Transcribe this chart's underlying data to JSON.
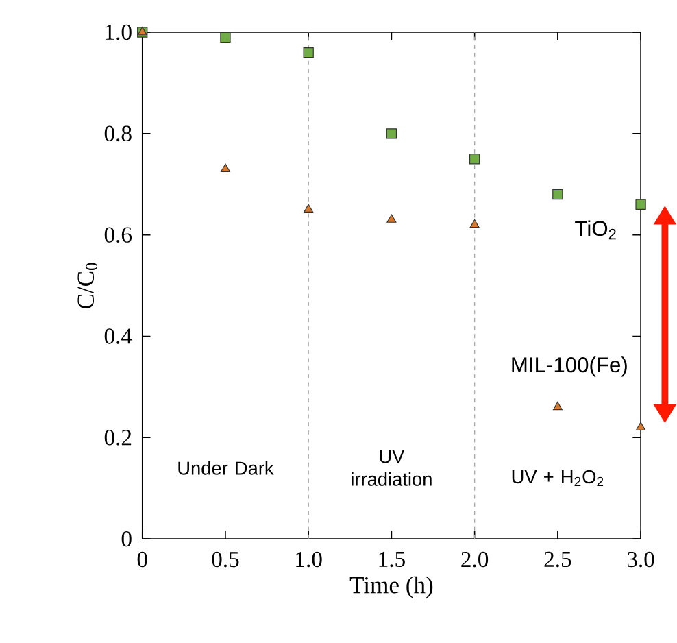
{
  "chart_data": {
    "type": "scatter",
    "xlabel": "Time (h)",
    "ylabel": "C/C$_{0}$",
    "xlim": [
      0,
      3
    ],
    "ylim": [
      0,
      1
    ],
    "xticks": [
      0,
      {
        "value": 0.5,
        "label": "0.5"
      },
      {
        "value": 1,
        "label": "1.0"
      },
      {
        "value": 1.5,
        "label": "1.5"
      },
      {
        "value": 2,
        "label": "2.0"
      },
      {
        "value": 2.5,
        "label": "2.5"
      },
      {
        "value": 3,
        "label": "3.0"
      }
    ],
    "yticks": [
      0,
      0.2,
      0.4,
      0.6,
      0.8,
      {
        "value": 1,
        "label": "1.0"
      }
    ],
    "x": [
      0,
      0.5,
      1,
      1.5,
      2,
      2.5,
      3
    ],
    "series": [
      {
        "name": "TiO$_{2}$",
        "color": "#70ad47",
        "marker": "square",
        "values": [
          1.0,
          0.99,
          0.96,
          0.8,
          0.75,
          0.68,
          0.66
        ]
      },
      {
        "name": "MIL-100(Fe)",
        "color": "#d9792b",
        "marker": "triangle",
        "values": [
          1.0,
          0.73,
          0.65,
          0.63,
          0.62,
          0.26,
          0.22
        ]
      }
    ],
    "ref_lines": [
      {
        "axis": "x",
        "value": 1,
        "color": "#aaaaaa",
        "line_style": "dashed"
      },
      {
        "axis": "x",
        "value": 2,
        "color": "#aaaaaa",
        "line_style": "dashed"
      }
    ],
    "annotations": [
      "Under Dark",
      "UV irradiation",
      "UV + H$_{2}$O$_{2}$"
    ],
    "grid": false,
    "legend": false
  }
}
